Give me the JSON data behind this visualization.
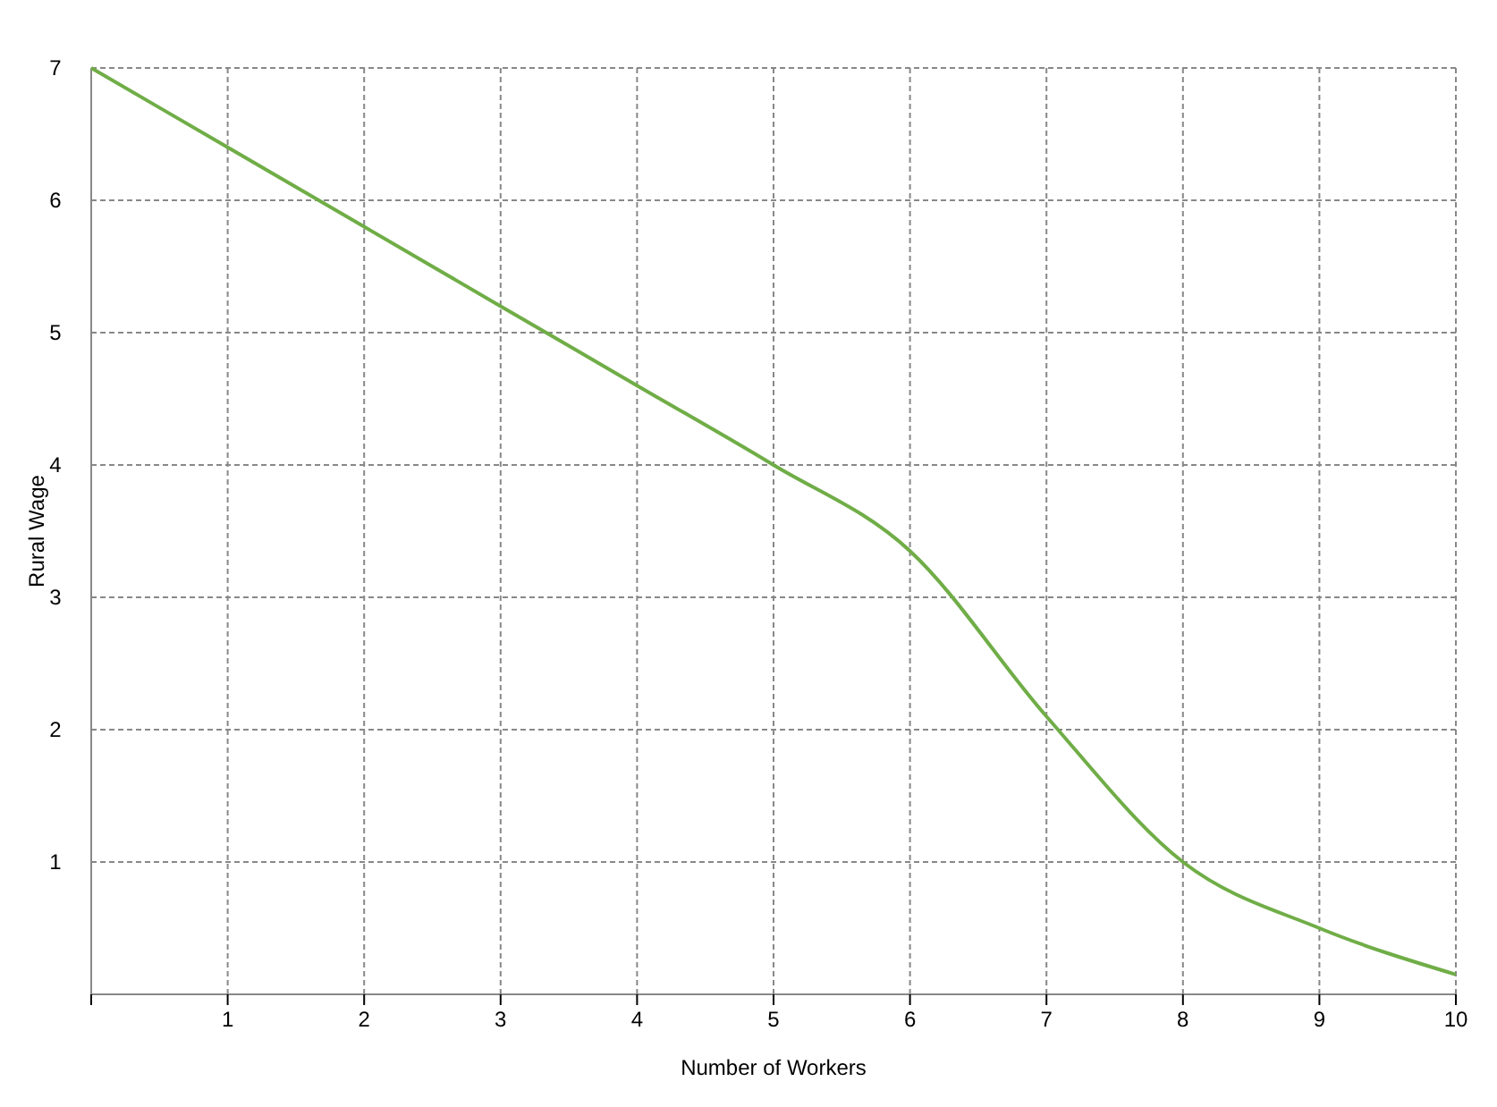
{
  "chart_data": {
    "type": "line",
    "xlabel": "Number of Workers",
    "ylabel": "Rural Wage",
    "x": [
      0,
      1,
      2,
      3,
      4,
      5,
      6,
      7,
      8,
      9,
      10
    ],
    "series": [
      {
        "color": "#70ad47",
        "values": [
          7,
          6.4,
          5.8,
          5.2,
          4.6,
          4.0,
          3.35,
          2.1,
          1.0,
          0.5,
          0.15
        ]
      }
    ],
    "xlim": [
      0,
      10
    ],
    "ylim": [
      0,
      7
    ],
    "xticks": [
      {
        "value": 0,
        "label": null
      },
      1,
      2,
      3,
      4,
      5,
      6,
      7,
      8,
      9,
      10
    ],
    "yticks": [
      {
        "value": 0,
        "label": null
      },
      1,
      2,
      3,
      4,
      5,
      6,
      7
    ],
    "grid": true,
    "line_style": "solid",
    "marker": "none"
  }
}
